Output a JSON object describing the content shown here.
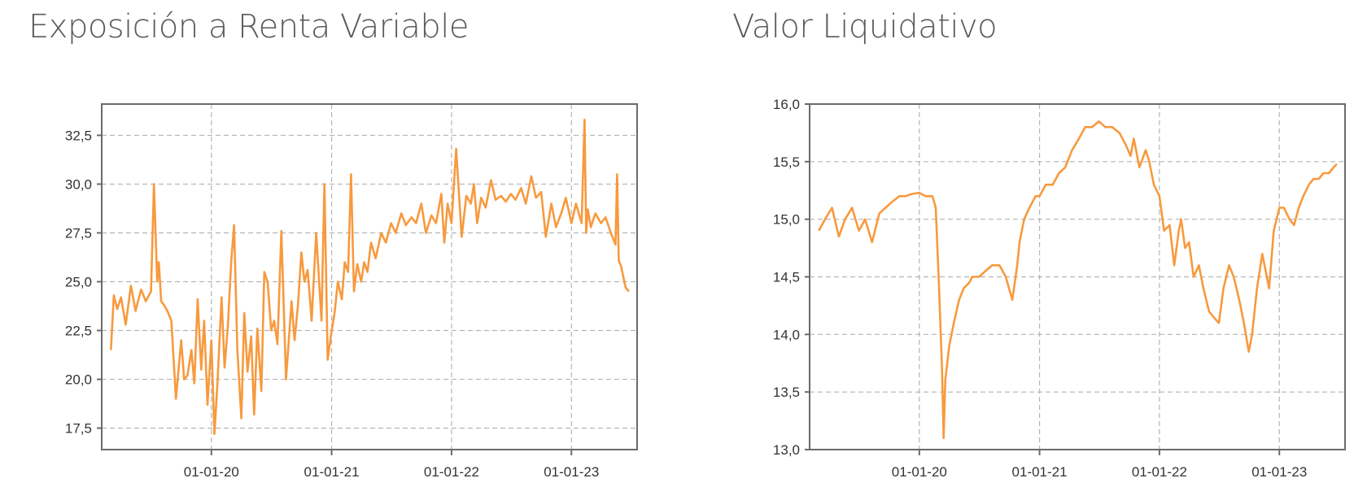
{
  "chart_data": [
    {
      "type": "line",
      "title": "Exposición a Renta Variable",
      "xlabel": "",
      "ylabel": "",
      "x_tick_labels": [
        "01-01-20",
        "01-01-21",
        "01-01-22",
        "01-01-23"
      ],
      "y_tick_labels": [
        "17,5",
        "20,0",
        "22,5",
        "25,0",
        "27,5",
        "30,0",
        "32,5"
      ],
      "y_ticks": [
        17.5,
        20.0,
        22.5,
        25.0,
        27.5,
        30.0,
        32.5
      ],
      "ylim": [
        16.4,
        34.1
      ],
      "xlim": [
        "2019-02-01",
        "2023-07-20"
      ],
      "grid": true,
      "line_color": "#f79a3e",
      "series": [
        {
          "x": [
            "2019-03-01",
            "2019-03-10",
            "2019-03-20",
            "2019-04-01",
            "2019-04-15",
            "2019-05-01",
            "2019-05-15",
            "2019-06-01",
            "2019-06-15",
            "2019-07-01",
            "2019-07-10",
            "2019-07-15",
            "2019-07-20",
            "2019-07-25",
            "2019-08-01",
            "2019-08-10",
            "2019-08-20",
            "2019-09-01",
            "2019-09-15",
            "2019-10-01",
            "2019-10-10",
            "2019-10-20",
            "2019-11-01",
            "2019-11-10",
            "2019-11-20",
            "2019-12-01",
            "2019-12-10",
            "2019-12-20",
            "2020-01-01",
            "2020-01-10",
            "2020-01-20",
            "2020-02-01",
            "2020-02-10",
            "2020-02-20",
            "2020-03-01",
            "2020-03-10",
            "2020-03-20",
            "2020-04-01",
            "2020-04-10",
            "2020-04-20",
            "2020-05-01",
            "2020-05-10",
            "2020-05-20",
            "2020-06-01",
            "2020-06-10",
            "2020-06-20",
            "2020-07-01",
            "2020-07-10",
            "2020-07-20",
            "2020-08-01",
            "2020-08-15",
            "2020-09-01",
            "2020-09-10",
            "2020-09-20",
            "2020-10-01",
            "2020-10-10",
            "2020-10-20",
            "2020-11-01",
            "2020-11-15",
            "2020-12-01",
            "2020-12-10",
            "2020-12-20",
            "2021-01-01",
            "2021-01-10",
            "2021-01-20",
            "2021-02-01",
            "2021-02-10",
            "2021-02-20",
            "2021-03-01",
            "2021-03-10",
            "2021-03-20",
            "2021-04-01",
            "2021-04-10",
            "2021-04-20",
            "2021-05-01",
            "2021-05-15",
            "2021-06-01",
            "2021-06-15",
            "2021-07-01",
            "2021-07-15",
            "2021-08-01",
            "2021-08-15",
            "2021-09-01",
            "2021-09-15",
            "2021-10-01",
            "2021-10-15",
            "2021-11-01",
            "2021-11-15",
            "2021-12-01",
            "2021-12-10",
            "2021-12-20",
            "2022-01-01",
            "2022-01-15",
            "2022-02-01",
            "2022-02-15",
            "2022-03-01",
            "2022-03-10",
            "2022-03-20",
            "2022-04-01",
            "2022-04-15",
            "2022-05-01",
            "2022-05-15",
            "2022-06-01",
            "2022-06-15",
            "2022-07-01",
            "2022-07-15",
            "2022-08-01",
            "2022-08-15",
            "2022-09-01",
            "2022-09-15",
            "2022-10-01",
            "2022-10-15",
            "2022-11-01",
            "2022-11-15",
            "2022-12-01",
            "2022-12-15",
            "2023-01-01",
            "2023-01-15",
            "2023-02-01",
            "2023-02-10",
            "2023-02-15",
            "2023-02-20",
            "2023-03-01",
            "2023-03-15",
            "2023-04-01",
            "2023-04-15",
            "2023-05-01",
            "2023-05-15",
            "2023-05-20",
            "2023-05-25",
            "2023-06-01",
            "2023-06-15",
            "2023-06-25"
          ],
          "values": [
            21.5,
            24.3,
            23.6,
            24.2,
            22.8,
            24.8,
            23.5,
            24.6,
            24.0,
            24.5,
            30.0,
            27.5,
            25.0,
            26.0,
            24.0,
            23.8,
            23.5,
            23.0,
            19.0,
            22.0,
            20.0,
            20.2,
            21.5,
            19.8,
            24.1,
            20.5,
            23.0,
            18.7,
            22.0,
            17.2,
            20.0,
            24.2,
            20.6,
            22.7,
            26.0,
            27.9,
            21.5,
            18.0,
            23.4,
            20.4,
            22.2,
            18.2,
            22.6,
            19.4,
            25.5,
            25.0,
            22.5,
            23.0,
            21.8,
            27.6,
            20.0,
            24.0,
            22.0,
            23.7,
            26.5,
            25.0,
            25.6,
            23.0,
            27.5,
            23.0,
            30.0,
            21.0,
            22.5,
            23.4,
            25.0,
            24.1,
            26.0,
            25.5,
            30.5,
            24.5,
            25.9,
            25.0,
            26.0,
            25.5,
            27.0,
            26.2,
            27.5,
            27.0,
            28.0,
            27.5,
            28.5,
            27.9,
            28.3,
            28.0,
            29.0,
            27.5,
            28.4,
            28.0,
            29.5,
            27.0,
            29.0,
            28.0,
            31.8,
            27.3,
            29.4,
            29.0,
            30.0,
            28.0,
            29.3,
            28.8,
            30.2,
            29.2,
            29.4,
            29.1,
            29.5,
            29.2,
            29.8,
            29.0,
            30.4,
            29.3,
            29.6,
            27.3,
            29.0,
            27.8,
            28.5,
            29.3,
            28.0,
            29.0,
            28.0,
            33.3,
            27.5,
            28.7,
            27.8,
            28.5,
            28.0,
            28.3,
            27.5,
            26.9,
            30.5,
            26.1,
            25.8,
            24.7,
            24.5
          ]
        }
      ]
    },
    {
      "type": "line",
      "title": "Valor Liquidativo",
      "xlabel": "",
      "ylabel": "",
      "x_tick_labels": [
        "01-01-20",
        "01-01-21",
        "01-01-22",
        "01-01-23"
      ],
      "y_tick_labels": [
        "13,0",
        "13,5",
        "14,0",
        "14,5",
        "15,0",
        "15,5",
        "16,0"
      ],
      "y_ticks": [
        13.0,
        13.5,
        14.0,
        14.5,
        15.0,
        15.5,
        16.0
      ],
      "ylim": [
        13.0,
        16.0
      ],
      "xlim": [
        "2019-02-01",
        "2023-07-20"
      ],
      "grid": true,
      "line_color": "#f79a3e",
      "series": [
        {
          "x": [
            "2019-03-01",
            "2019-03-20",
            "2019-04-10",
            "2019-05-01",
            "2019-05-20",
            "2019-06-10",
            "2019-07-01",
            "2019-07-20",
            "2019-08-10",
            "2019-09-01",
            "2019-09-20",
            "2019-10-10",
            "2019-11-01",
            "2019-11-20",
            "2019-12-10",
            "2020-01-01",
            "2020-01-20",
            "2020-02-10",
            "2020-02-20",
            "2020-03-01",
            "2020-03-10",
            "2020-03-15",
            "2020-03-20",
            "2020-04-01",
            "2020-04-15",
            "2020-05-01",
            "2020-05-15",
            "2020-06-01",
            "2020-06-10",
            "2020-07-01",
            "2020-07-20",
            "2020-08-10",
            "2020-09-01",
            "2020-09-20",
            "2020-10-10",
            "2020-10-25",
            "2020-11-01",
            "2020-11-15",
            "2020-12-01",
            "2020-12-20",
            "2021-01-01",
            "2021-01-20",
            "2021-02-10",
            "2021-03-01",
            "2021-03-20",
            "2021-04-10",
            "2021-05-01",
            "2021-05-20",
            "2021-06-10",
            "2021-07-01",
            "2021-07-20",
            "2021-08-10",
            "2021-09-01",
            "2021-09-20",
            "2021-10-05",
            "2021-10-15",
            "2021-11-01",
            "2021-11-20",
            "2021-12-01",
            "2021-12-15",
            "2022-01-01",
            "2022-01-15",
            "2022-02-01",
            "2022-02-15",
            "2022-03-01",
            "2022-03-08",
            "2022-03-20",
            "2022-04-01",
            "2022-04-15",
            "2022-05-01",
            "2022-05-15",
            "2022-06-01",
            "2022-06-15",
            "2022-07-01",
            "2022-07-15",
            "2022-08-01",
            "2022-08-15",
            "2022-09-01",
            "2022-09-15",
            "2022-09-30",
            "2022-10-10",
            "2022-10-25",
            "2022-11-10",
            "2022-12-01",
            "2022-12-15",
            "2023-01-01",
            "2023-01-15",
            "2023-02-01",
            "2023-02-15",
            "2023-03-01",
            "2023-03-15",
            "2023-04-01",
            "2023-04-15",
            "2023-05-01",
            "2023-05-15",
            "2023-06-01",
            "2023-06-15",
            "2023-06-25"
          ],
          "values": [
            14.9,
            15.0,
            15.1,
            14.85,
            15.0,
            15.1,
            14.9,
            15.0,
            14.8,
            15.05,
            15.1,
            15.15,
            15.2,
            15.2,
            15.22,
            15.23,
            15.2,
            15.2,
            15.1,
            14.4,
            13.7,
            13.1,
            13.6,
            13.9,
            14.1,
            14.3,
            14.4,
            14.45,
            14.5,
            14.5,
            14.55,
            14.6,
            14.6,
            14.5,
            14.3,
            14.6,
            14.8,
            15.0,
            15.1,
            15.2,
            15.2,
            15.3,
            15.3,
            15.4,
            15.45,
            15.6,
            15.7,
            15.8,
            15.8,
            15.85,
            15.8,
            15.8,
            15.75,
            15.65,
            15.55,
            15.7,
            15.45,
            15.6,
            15.5,
            15.3,
            15.2,
            14.9,
            14.95,
            14.6,
            14.9,
            15.0,
            14.75,
            14.8,
            14.5,
            14.6,
            14.4,
            14.2,
            14.15,
            14.1,
            14.4,
            14.6,
            14.5,
            14.3,
            14.1,
            13.85,
            14.0,
            14.4,
            14.7,
            14.4,
            14.9,
            15.1,
            15.1,
            15.0,
            14.95,
            15.1,
            15.2,
            15.3,
            15.35,
            15.35,
            15.4,
            15.4,
            15.45,
            15.48
          ]
        }
      ]
    }
  ]
}
